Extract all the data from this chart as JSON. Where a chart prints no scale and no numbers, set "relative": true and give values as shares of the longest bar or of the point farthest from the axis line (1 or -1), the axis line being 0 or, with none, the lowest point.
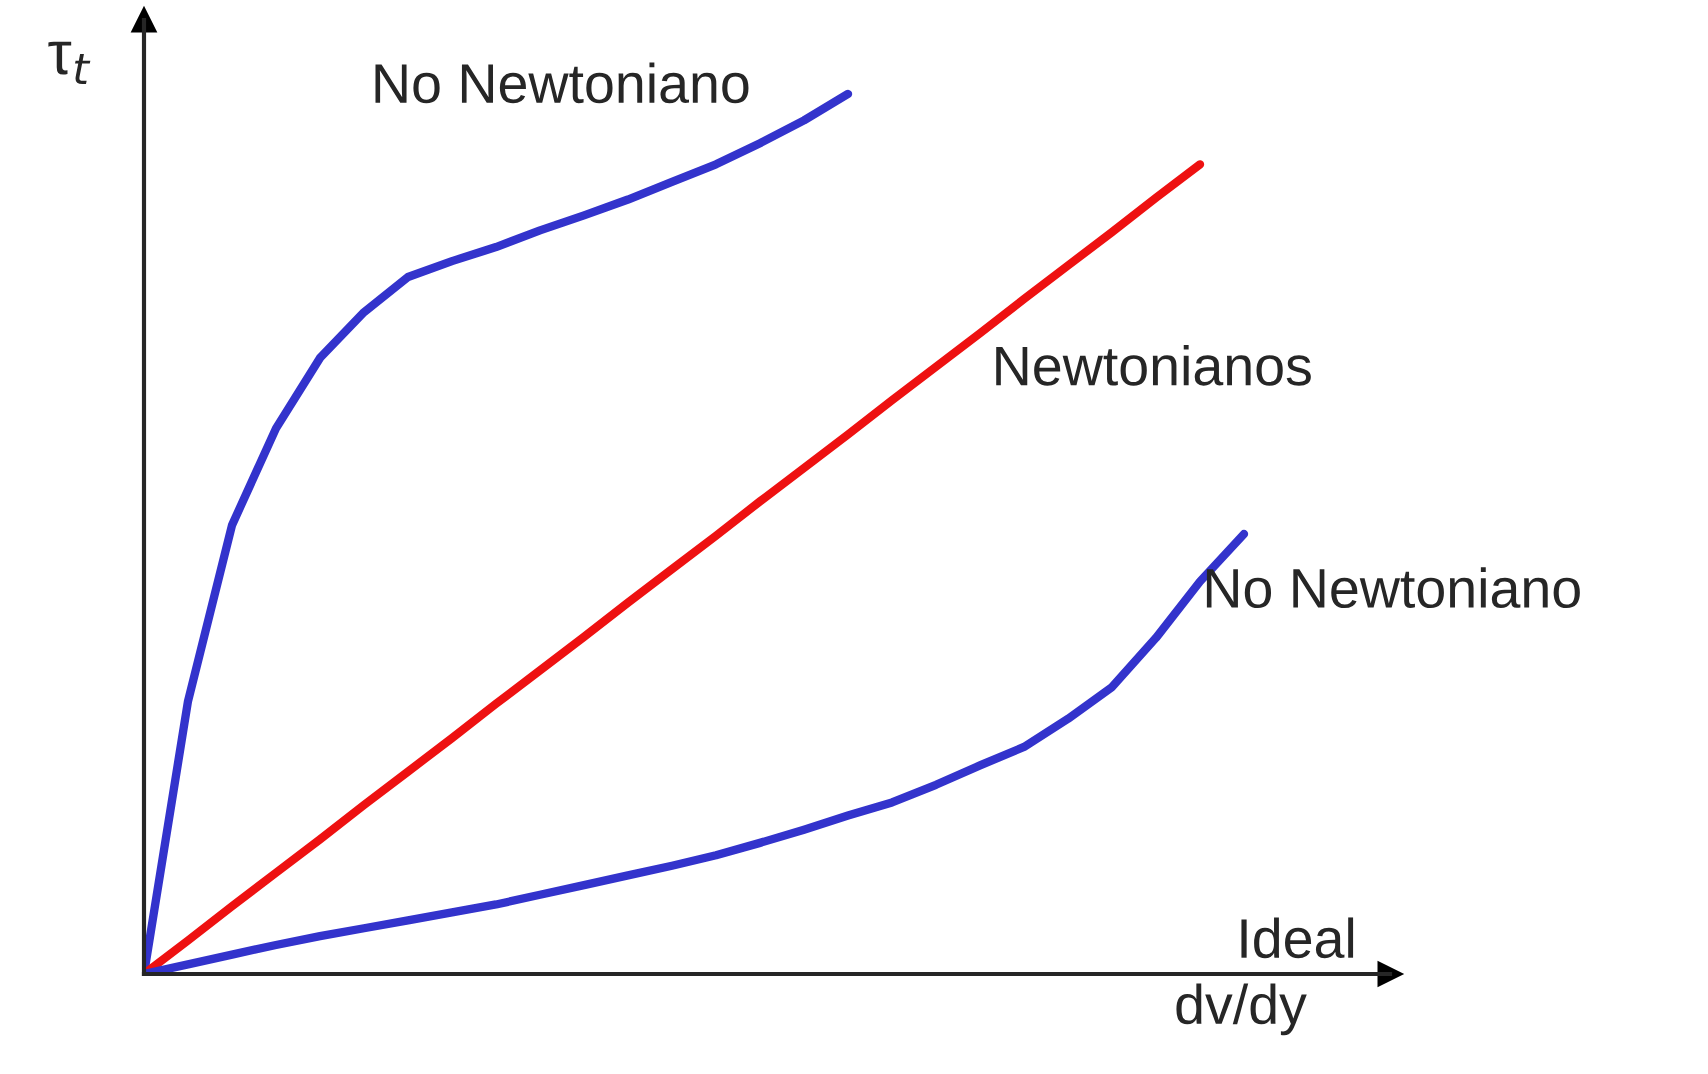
{
  "chart_data": {
    "type": "line",
    "relative": true,
    "xlabel": "dv/dy",
    "ylabel": "τ$_{t}$",
    "legend": false,
    "categories": [
      null,
      null,
      null,
      null,
      null,
      null,
      null,
      null,
      null,
      null,
      null,
      null,
      null,
      null,
      null,
      null,
      null,
      null,
      null,
      null,
      null,
      null,
      null,
      null,
      null,
      null
    ],
    "series": [
      {
        "name": "No Newtoniano",
        "color": "#3333cc",
        "values": [
          0,
          0.31,
          0.51,
          0.62,
          0.7,
          0.752,
          0.792,
          0.81,
          0.826,
          0.845,
          0.862,
          0.88,
          0.9,
          0.92,
          0.944,
          0.97,
          1.0,
          null,
          null,
          null,
          null,
          null,
          null,
          null,
          null,
          null
        ]
      },
      {
        "name": "Newtonianos",
        "color": "#ee1111",
        "values": [
          0,
          0.038,
          0.077,
          0.115,
          0.153,
          0.192,
          0.23,
          0.268,
          0.307,
          0.345,
          0.383,
          0.422,
          0.46,
          0.498,
          0.537,
          0.575,
          0.613,
          0.652,
          0.69,
          0.728,
          0.767,
          0.805,
          0.843,
          0.882,
          0.92,
          null
        ]
      },
      {
        "name": "No Newtoniano",
        "color": "#3333cc",
        "values": [
          0,
          0.011,
          0.022,
          0.033,
          0.043,
          0.052,
          0.061,
          0.07,
          0.079,
          0.09,
          0.101,
          0.112,
          0.123,
          0.135,
          0.149,
          0.164,
          0.18,
          0.195,
          0.215,
          0.237,
          0.258,
          0.29,
          0.326,
          0.382,
          0.446,
          0.5
        ]
      }
    ],
    "annotations": [
      "Ideal"
    ]
  }
}
